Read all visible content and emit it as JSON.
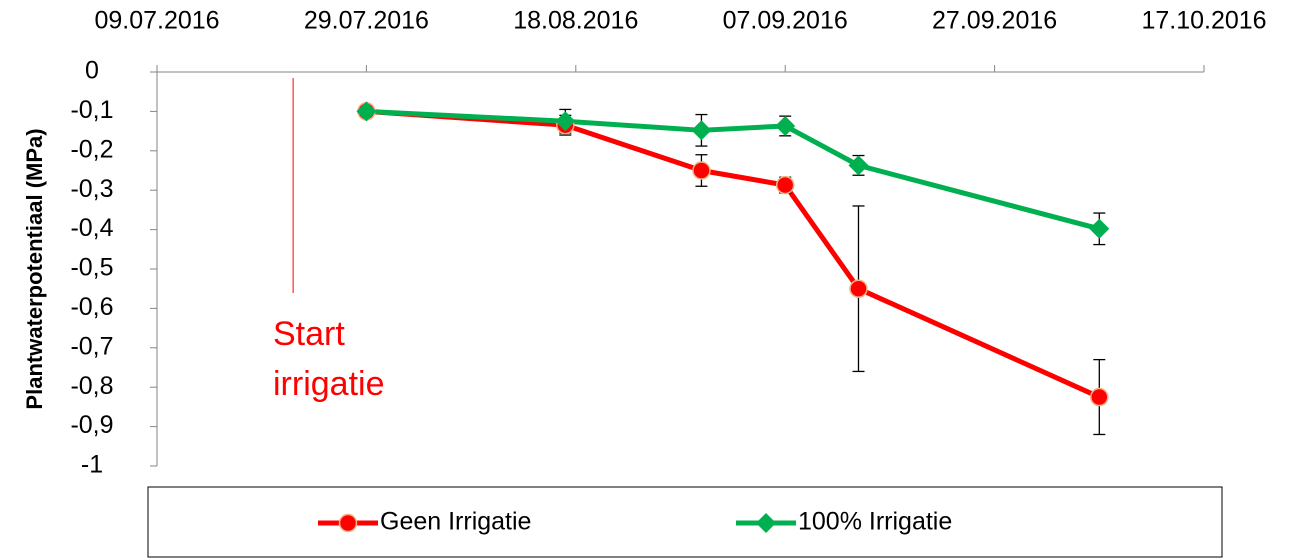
{
  "chart_data": {
    "type": "line",
    "y_label": "Plantwaterpotentiaal (MPa)",
    "x": [
      "2016-07-29",
      "2016-08-17",
      "2016-08-30",
      "2016-09-07",
      "2016-09-14",
      "2016-10-07"
    ],
    "series": [
      {
        "name": "Geen Irrigatie",
        "color": "#ff0000",
        "marker": "circle",
        "values": [
          -0.1,
          -0.135,
          -0.25,
          -0.287,
          -0.55,
          -0.825
        ],
        "errors": [
          0,
          0.025,
          0.04,
          0.02,
          0.21,
          0.095
        ]
      },
      {
        "name": "100% Irrigatie",
        "color": "#00b050",
        "marker": "diamond",
        "values": [
          -0.1,
          -0.125,
          -0.148,
          -0.137,
          -0.237,
          -0.398
        ],
        "errors": [
          0,
          0.03,
          0.04,
          0.025,
          0.025,
          0.04
        ]
      }
    ],
    "xlim": [
      "2016-07-09",
      "2016-10-17"
    ],
    "xticks": [
      {
        "value": "2016-07-09",
        "label": "09.07.2016"
      },
      {
        "value": "2016-07-29",
        "label": "29.07.2016"
      },
      {
        "value": "2016-08-18",
        "label": "18.08.2016"
      },
      {
        "value": "2016-09-07",
        "label": "07.09.2016"
      },
      {
        "value": "2016-09-27",
        "label": "27.09.2016"
      },
      {
        "value": "2016-10-17",
        "label": "17.10.2016"
      }
    ],
    "ylim": [
      -1,
      0
    ],
    "yticks": [
      0,
      {
        "value": -0.1,
        "label": "-0,1"
      },
      {
        "value": -0.2,
        "label": "-0,2"
      },
      {
        "value": -0.3,
        "label": "-0,3"
      },
      {
        "value": -0.4,
        "label": "-0,4"
      },
      {
        "value": -0.5,
        "label": "-0,5"
      },
      {
        "value": -0.6,
        "label": "-0,6"
      },
      {
        "value": -0.7,
        "label": "-0,7"
      },
      {
        "value": -0.8,
        "label": "-0,8"
      },
      {
        "value": -0.9,
        "label": "-0,9"
      },
      -1
    ],
    "annotation": {
      "text": [
        "Start",
        "irrigatie"
      ],
      "x": "2016-07-22",
      "color": "#ff0000"
    },
    "legend": "bottom"
  }
}
